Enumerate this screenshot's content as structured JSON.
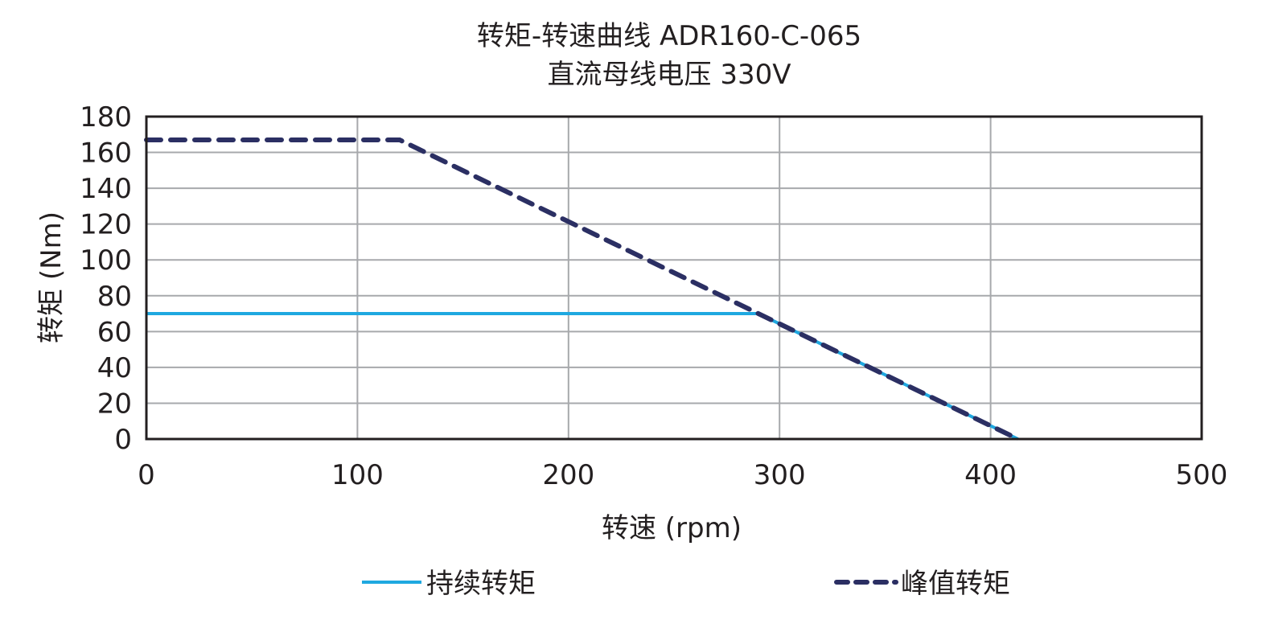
{
  "chart_data": {
    "type": "line",
    "title": "转矩-转速曲线 ADR160-C-065",
    "subtitle": "直流母线电压 330V",
    "xlabel": "转速 (rpm)",
    "ylabel": "转矩 (Nm)",
    "xlim": [
      0,
      500
    ],
    "ylim": [
      0,
      180
    ],
    "xticks": [
      0,
      100,
      200,
      300,
      400,
      500
    ],
    "yticks": [
      0,
      20,
      40,
      60,
      80,
      100,
      120,
      140,
      160,
      180
    ],
    "grid": true,
    "legend_placement": "bottom",
    "series": [
      {
        "name": "持续转矩",
        "color": "#1fa8e0",
        "style": "solid",
        "x": [
          0,
          290,
          413
        ],
        "y": [
          70,
          70,
          0
        ]
      },
      {
        "name": "峰值转矩",
        "color": "#2b2f63",
        "style": "dashed",
        "x": [
          0,
          120,
          290,
          413
        ],
        "y": [
          167,
          167,
          70,
          0
        ]
      }
    ]
  }
}
